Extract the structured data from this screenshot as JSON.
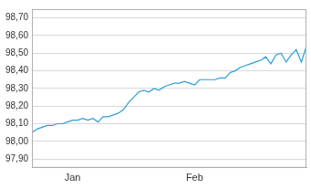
{
  "chart_data": {
    "type": "line",
    "color": "#2a9fd8",
    "grid": true,
    "categories": [
      null,
      null,
      null,
      null,
      null,
      null,
      null,
      null,
      "Jan",
      null,
      null,
      null,
      null,
      null,
      null,
      null,
      null,
      null,
      null,
      null,
      null,
      null,
      null,
      null,
      null,
      null,
      null,
      null,
      null,
      null,
      null,
      null,
      "Feb",
      null,
      null,
      null,
      null,
      null,
      null,
      null,
      null,
      null,
      null,
      null,
      null,
      null,
      null,
      null,
      null,
      null,
      null,
      null,
      null,
      null,
      null
    ],
    "values": [
      98.05,
      98.07,
      98.08,
      98.09,
      98.09,
      98.1,
      98.1,
      98.11,
      98.12,
      98.12,
      98.13,
      98.12,
      98.13,
      98.11,
      98.14,
      98.14,
      98.15,
      98.16,
      98.18,
      98.22,
      98.25,
      98.28,
      98.29,
      98.28,
      98.3,
      98.29,
      98.31,
      98.32,
      98.33,
      98.33,
      98.34,
      98.33,
      98.32,
      98.35,
      98.35,
      98.35,
      98.35,
      98.36,
      98.36,
      98.39,
      98.4,
      98.42,
      98.43,
      98.44,
      98.45,
      98.46,
      98.48,
      98.44,
      98.49,
      98.5,
      98.45,
      98.49,
      98.52,
      98.45,
      98.54
    ],
    "ylim": [
      97.85,
      98.75
    ],
    "yticks": [
      {
        "value": 97.9,
        "label": "97,90"
      },
      {
        "value": 98.0,
        "label": "98,00"
      },
      {
        "value": 98.1,
        "label": "98,10"
      },
      {
        "value": 98.2,
        "label": "98,20"
      },
      {
        "value": 98.3,
        "label": "98,30"
      },
      {
        "value": 98.4,
        "label": "98,40"
      },
      {
        "value": 98.5,
        "label": "98,50"
      },
      {
        "value": 98.6,
        "label": "98,60"
      },
      {
        "value": 98.7,
        "label": "98,70"
      }
    ]
  }
}
